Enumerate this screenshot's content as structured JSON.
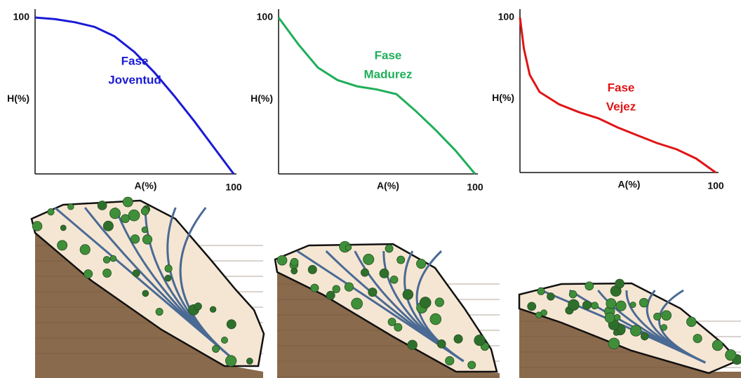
{
  "chart_data": [
    {
      "type": "line",
      "xlabel": "A(%)",
      "ylabel": "H(%)",
      "annotation": [
        "Fase",
        "Joventud"
      ],
      "x": [
        0,
        10,
        20,
        30,
        40,
        50,
        60,
        70,
        80,
        90,
        100
      ],
      "values": [
        100,
        99,
        97,
        94,
        88,
        78,
        65,
        50,
        34,
        17,
        0
      ],
      "color": "#1a1ad6",
      "xlim": [
        0,
        100
      ],
      "ylim": [
        0,
        100
      ],
      "xticks": [
        100
      ],
      "yticks": [
        100
      ]
    },
    {
      "type": "line",
      "xlabel": "A(%)",
      "ylabel": "H(%)",
      "annotation": [
        "Fase",
        "Madurez"
      ],
      "x": [
        0,
        10,
        20,
        30,
        40,
        50,
        60,
        70,
        80,
        90,
        100
      ],
      "values": [
        100,
        83,
        68,
        60,
        56,
        54,
        51,
        40,
        28,
        15,
        0
      ],
      "color": "#1fae5a",
      "xlim": [
        0,
        100
      ],
      "ylim": [
        0,
        100
      ],
      "xticks": [
        100
      ],
      "yticks": [
        100
      ]
    },
    {
      "type": "line",
      "xlabel": "A(%)",
      "ylabel": "H(%)",
      "annotation": [
        "Fase",
        "Vejez"
      ],
      "x": [
        0,
        2,
        5,
        10,
        20,
        30,
        40,
        50,
        60,
        70,
        80,
        90,
        100
      ],
      "values": [
        100,
        80,
        63,
        52,
        44,
        39,
        35,
        29,
        24,
        19,
        15,
        9,
        0
      ],
      "color": "#e01515",
      "xlim": [
        0,
        100
      ],
      "ylim": [
        0,
        100
      ],
      "xticks": [
        100
      ],
      "yticks": [
        100
      ]
    }
  ]
}
